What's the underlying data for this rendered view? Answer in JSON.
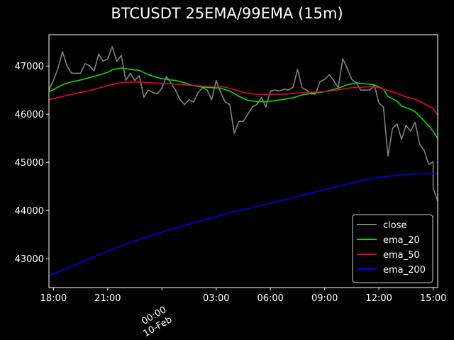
{
  "chart_data": {
    "type": "line",
    "title": "BTCUSDT 25EMA/99EMA (15m)",
    "x_start": "2022-02-09 17:45",
    "x_end": "2022-02-10 15:15",
    "xticks": [
      {
        "t": "2022-02-09 18:00",
        "label": "18:00"
      },
      {
        "t": "2022-02-09 21:00",
        "label": "21:00"
      },
      {
        "t": "2022-02-10 00:00",
        "label": "00:00",
        "sublabel": "10-Feb"
      },
      {
        "t": "2022-02-10 03:00",
        "label": "03:00"
      },
      {
        "t": "2022-02-10 06:00",
        "label": "06:00"
      },
      {
        "t": "2022-02-10 09:00",
        "label": "09:00"
      },
      {
        "t": "2022-02-10 12:00",
        "label": "12:00"
      },
      {
        "t": "2022-02-10 15:00",
        "label": "15:00"
      }
    ],
    "ylim": [
      42400,
      47650
    ],
    "yticks": [
      43000,
      44000,
      45000,
      46000,
      47000
    ],
    "legend_position": "bottom-right",
    "grid": false,
    "series": [
      {
        "name": "close",
        "color": "#808080",
        "points": [
          [
            "2022-02-09 17:45",
            46500
          ],
          [
            "2022-02-09 18:00",
            46700
          ],
          [
            "2022-02-09 18:15",
            46950
          ],
          [
            "2022-02-09 18:30",
            47300
          ],
          [
            "2022-02-09 18:45",
            47000
          ],
          [
            "2022-02-09 19:00",
            46850
          ],
          [
            "2022-02-09 19:15",
            46850
          ],
          [
            "2022-02-09 19:30",
            46850
          ],
          [
            "2022-02-09 19:45",
            47050
          ],
          [
            "2022-02-09 20:00",
            47000
          ],
          [
            "2022-02-09 20:15",
            46900
          ],
          [
            "2022-02-09 20:30",
            47250
          ],
          [
            "2022-02-09 20:45",
            47100
          ],
          [
            "2022-02-09 21:00",
            47150
          ],
          [
            "2022-02-09 21:15",
            47400
          ],
          [
            "2022-02-09 21:30",
            47100
          ],
          [
            "2022-02-09 21:45",
            47220
          ],
          [
            "2022-02-09 22:00",
            46700
          ],
          [
            "2022-02-09 22:15",
            46850
          ],
          [
            "2022-02-09 22:30",
            46700
          ],
          [
            "2022-02-09 22:45",
            46800
          ],
          [
            "2022-02-09 23:00",
            46350
          ],
          [
            "2022-02-09 23:15",
            46500
          ],
          [
            "2022-02-09 23:30",
            46450
          ],
          [
            "2022-02-09 23:45",
            46420
          ],
          [
            "2022-02-10 00:00",
            46550
          ],
          [
            "2022-02-10 00:15",
            46780
          ],
          [
            "2022-02-10 00:30",
            46650
          ],
          [
            "2022-02-10 00:45",
            46500
          ],
          [
            "2022-02-10 01:00",
            46300
          ],
          [
            "2022-02-10 01:15",
            46200
          ],
          [
            "2022-02-10 01:30",
            46300
          ],
          [
            "2022-02-10 01:45",
            46250
          ],
          [
            "2022-02-10 02:00",
            46450
          ],
          [
            "2022-02-10 02:15",
            46550
          ],
          [
            "2022-02-10 02:30",
            46500
          ],
          [
            "2022-02-10 02:45",
            46300
          ],
          [
            "2022-02-10 03:00",
            46700
          ],
          [
            "2022-02-10 03:15",
            46450
          ],
          [
            "2022-02-10 03:30",
            46250
          ],
          [
            "2022-02-10 03:45",
            46200
          ],
          [
            "2022-02-10 04:00",
            45600
          ],
          [
            "2022-02-10 04:15",
            45850
          ],
          [
            "2022-02-10 04:30",
            45850
          ],
          [
            "2022-02-10 04:45",
            46000
          ],
          [
            "2022-02-10 05:00",
            46150
          ],
          [
            "2022-02-10 05:15",
            46200
          ],
          [
            "2022-02-10 05:30",
            46350
          ],
          [
            "2022-02-10 05:45",
            46150
          ],
          [
            "2022-02-10 06:00",
            46480
          ],
          [
            "2022-02-10 06:15",
            46500
          ],
          [
            "2022-02-10 06:30",
            46480
          ],
          [
            "2022-02-10 06:45",
            46520
          ],
          [
            "2022-02-10 07:00",
            46500
          ],
          [
            "2022-02-10 07:15",
            46560
          ],
          [
            "2022-02-10 07:30",
            46930
          ],
          [
            "2022-02-10 07:45",
            46550
          ],
          [
            "2022-02-10 08:00",
            46500
          ],
          [
            "2022-02-10 08:15",
            46420
          ],
          [
            "2022-02-10 08:30",
            46420
          ],
          [
            "2022-02-10 08:45",
            46680
          ],
          [
            "2022-02-10 09:00",
            46720
          ],
          [
            "2022-02-10 09:15",
            46820
          ],
          [
            "2022-02-10 09:30",
            46700
          ],
          [
            "2022-02-10 09:45",
            46550
          ],
          [
            "2022-02-10 10:00",
            47150
          ],
          [
            "2022-02-10 10:15",
            46950
          ],
          [
            "2022-02-10 10:30",
            46720
          ],
          [
            "2022-02-10 10:45",
            46650
          ],
          [
            "2022-02-10 11:00",
            46500
          ],
          [
            "2022-02-10 11:15",
            46500
          ],
          [
            "2022-02-10 11:30",
            46500
          ],
          [
            "2022-02-10 11:45",
            46600
          ],
          [
            "2022-02-10 12:00",
            46230
          ],
          [
            "2022-02-10 12:15",
            46150
          ],
          [
            "2022-02-10 12:30",
            45130
          ],
          [
            "2022-02-10 12:45",
            45700
          ],
          [
            "2022-02-10 13:00",
            45800
          ],
          [
            "2022-02-10 13:15",
            45480
          ],
          [
            "2022-02-10 13:30",
            45760
          ],
          [
            "2022-02-10 13:45",
            45650
          ],
          [
            "2022-02-10 14:00",
            45830
          ],
          [
            "2022-02-10 14:15",
            45380
          ],
          [
            "2022-02-10 14:30",
            45250
          ],
          [
            "2022-02-10 14:45",
            44960
          ],
          [
            "2022-02-10 15:00",
            45010
          ],
          [
            "2022-02-10 15:00",
            44460
          ],
          [
            "2022-02-10 15:15",
            44200
          ]
        ]
      },
      {
        "name": "ema_20",
        "color": "#00e000",
        "points": [
          [
            "2022-02-09 17:45",
            46470
          ],
          [
            "2022-02-09 18:00",
            46510
          ],
          [
            "2022-02-09 18:30",
            46610
          ],
          [
            "2022-02-09 19:00",
            46670
          ],
          [
            "2022-02-09 19:30",
            46710
          ],
          [
            "2022-02-09 20:00",
            46760
          ],
          [
            "2022-02-09 20:30",
            46810
          ],
          [
            "2022-02-09 21:00",
            46870
          ],
          [
            "2022-02-09 21:15",
            46920
          ],
          [
            "2022-02-09 21:45",
            46960
          ],
          [
            "2022-02-09 22:15",
            46930
          ],
          [
            "2022-02-09 22:45",
            46910
          ],
          [
            "2022-02-09 23:15",
            46820
          ],
          [
            "2022-02-09 23:45",
            46760
          ],
          [
            "2022-02-10 00:15",
            46720
          ],
          [
            "2022-02-10 00:45",
            46700
          ],
          [
            "2022-02-10 01:15",
            46650
          ],
          [
            "2022-02-10 01:45",
            46590
          ],
          [
            "2022-02-10 02:15",
            46560
          ],
          [
            "2022-02-10 02:45",
            46550
          ],
          [
            "2022-02-10 03:15",
            46540
          ],
          [
            "2022-02-10 03:45",
            46480
          ],
          [
            "2022-02-10 04:15",
            46370
          ],
          [
            "2022-02-10 04:45",
            46290
          ],
          [
            "2022-02-10 05:15",
            46260
          ],
          [
            "2022-02-10 05:45",
            46260
          ],
          [
            "2022-02-10 06:15",
            46280
          ],
          [
            "2022-02-10 06:45",
            46310
          ],
          [
            "2022-02-10 07:15",
            46340
          ],
          [
            "2022-02-10 07:45",
            46400
          ],
          [
            "2022-02-10 08:15",
            46430
          ],
          [
            "2022-02-10 08:45",
            46450
          ],
          [
            "2022-02-10 09:15",
            46490
          ],
          [
            "2022-02-10 09:45",
            46540
          ],
          [
            "2022-02-10 10:15",
            46610
          ],
          [
            "2022-02-10 10:45",
            46650
          ],
          [
            "2022-02-10 11:15",
            46630
          ],
          [
            "2022-02-10 11:45",
            46610
          ],
          [
            "2022-02-10 12:15",
            46520
          ],
          [
            "2022-02-10 12:30",
            46370
          ],
          [
            "2022-02-10 13:00",
            46270
          ],
          [
            "2022-02-10 13:15",
            46170
          ],
          [
            "2022-02-10 13:45",
            46100
          ],
          [
            "2022-02-10 14:00",
            46050
          ],
          [
            "2022-02-10 14:15",
            45960
          ],
          [
            "2022-02-10 14:30",
            45860
          ],
          [
            "2022-02-10 14:45",
            45760
          ],
          [
            "2022-02-10 15:00",
            45640
          ],
          [
            "2022-02-10 15:15",
            45500
          ]
        ]
      },
      {
        "name": "ema_50",
        "color": "#e8003a",
        "points": [
          [
            "2022-02-09 17:45",
            46300
          ],
          [
            "2022-02-09 18:00",
            46320
          ],
          [
            "2022-02-09 18:30",
            46370
          ],
          [
            "2022-02-09 19:00",
            46410
          ],
          [
            "2022-02-09 19:30",
            46450
          ],
          [
            "2022-02-09 20:00",
            46490
          ],
          [
            "2022-02-09 20:30",
            46540
          ],
          [
            "2022-02-09 21:00",
            46590
          ],
          [
            "2022-02-09 21:30",
            46640
          ],
          [
            "2022-02-09 22:00",
            46660
          ],
          [
            "2022-02-09 22:30",
            46670
          ],
          [
            "2022-02-09 23:00",
            46660
          ],
          [
            "2022-02-09 23:30",
            46650
          ],
          [
            "2022-02-10 00:00",
            46640
          ],
          [
            "2022-02-10 00:30",
            46630
          ],
          [
            "2022-02-10 01:00",
            46620
          ],
          [
            "2022-02-10 01:30",
            46600
          ],
          [
            "2022-02-10 02:00",
            46590
          ],
          [
            "2022-02-10 02:30",
            46580
          ],
          [
            "2022-02-10 03:00",
            46580
          ],
          [
            "2022-02-10 03:30",
            46560
          ],
          [
            "2022-02-10 04:00",
            46510
          ],
          [
            "2022-02-10 04:30",
            46450
          ],
          [
            "2022-02-10 05:00",
            46420
          ],
          [
            "2022-02-10 05:30",
            46410
          ],
          [
            "2022-02-10 06:00",
            46410
          ],
          [
            "2022-02-10 06:30",
            46410
          ],
          [
            "2022-02-10 07:00",
            46420
          ],
          [
            "2022-02-10 07:30",
            46440
          ],
          [
            "2022-02-10 08:00",
            46450
          ],
          [
            "2022-02-10 08:30",
            46460
          ],
          [
            "2022-02-10 09:00",
            46470
          ],
          [
            "2022-02-10 09:30",
            46490
          ],
          [
            "2022-02-10 10:00",
            46520
          ],
          [
            "2022-02-10 10:30",
            46550
          ],
          [
            "2022-02-10 11:00",
            46560
          ],
          [
            "2022-02-10 11:30",
            46570
          ],
          [
            "2022-02-10 12:00",
            46550
          ],
          [
            "2022-02-10 12:30",
            46490
          ],
          [
            "2022-02-10 13:00",
            46430
          ],
          [
            "2022-02-10 13:30",
            46360
          ],
          [
            "2022-02-10 14:00",
            46310
          ],
          [
            "2022-02-10 14:30",
            46220
          ],
          [
            "2022-02-10 15:00",
            46120
          ],
          [
            "2022-02-10 15:15",
            45980
          ]
        ]
      },
      {
        "name": "ema_200",
        "color": "#0000ee",
        "points": [
          [
            "2022-02-09 17:45",
            42650
          ],
          [
            "2022-02-09 18:30",
            42760
          ],
          [
            "2022-02-09 19:15",
            42880
          ],
          [
            "2022-02-09 20:00",
            43000
          ],
          [
            "2022-02-09 20:45",
            43120
          ],
          [
            "2022-02-09 21:30",
            43230
          ],
          [
            "2022-02-09 22:15",
            43340
          ],
          [
            "2022-02-09 23:00",
            43430
          ],
          [
            "2022-02-09 23:45",
            43520
          ],
          [
            "2022-02-10 00:30",
            43610
          ],
          [
            "2022-02-10 01:15",
            43690
          ],
          [
            "2022-02-10 02:00",
            43770
          ],
          [
            "2022-02-10 02:45",
            43850
          ],
          [
            "2022-02-10 03:30",
            43930
          ],
          [
            "2022-02-10 04:15",
            44000
          ],
          [
            "2022-02-10 05:00",
            44060
          ],
          [
            "2022-02-10 05:45",
            44130
          ],
          [
            "2022-02-10 06:30",
            44200
          ],
          [
            "2022-02-10 07:15",
            44270
          ],
          [
            "2022-02-10 08:00",
            44340
          ],
          [
            "2022-02-10 08:45",
            44410
          ],
          [
            "2022-02-10 09:30",
            44480
          ],
          [
            "2022-02-10 10:15",
            44550
          ],
          [
            "2022-02-10 11:00",
            44620
          ],
          [
            "2022-02-10 11:45",
            44670
          ],
          [
            "2022-02-10 12:30",
            44710
          ],
          [
            "2022-02-10 13:15",
            44740
          ],
          [
            "2022-02-10 14:00",
            44760
          ],
          [
            "2022-02-10 14:45",
            44770
          ],
          [
            "2022-02-10 15:15",
            44770
          ]
        ]
      }
    ]
  }
}
